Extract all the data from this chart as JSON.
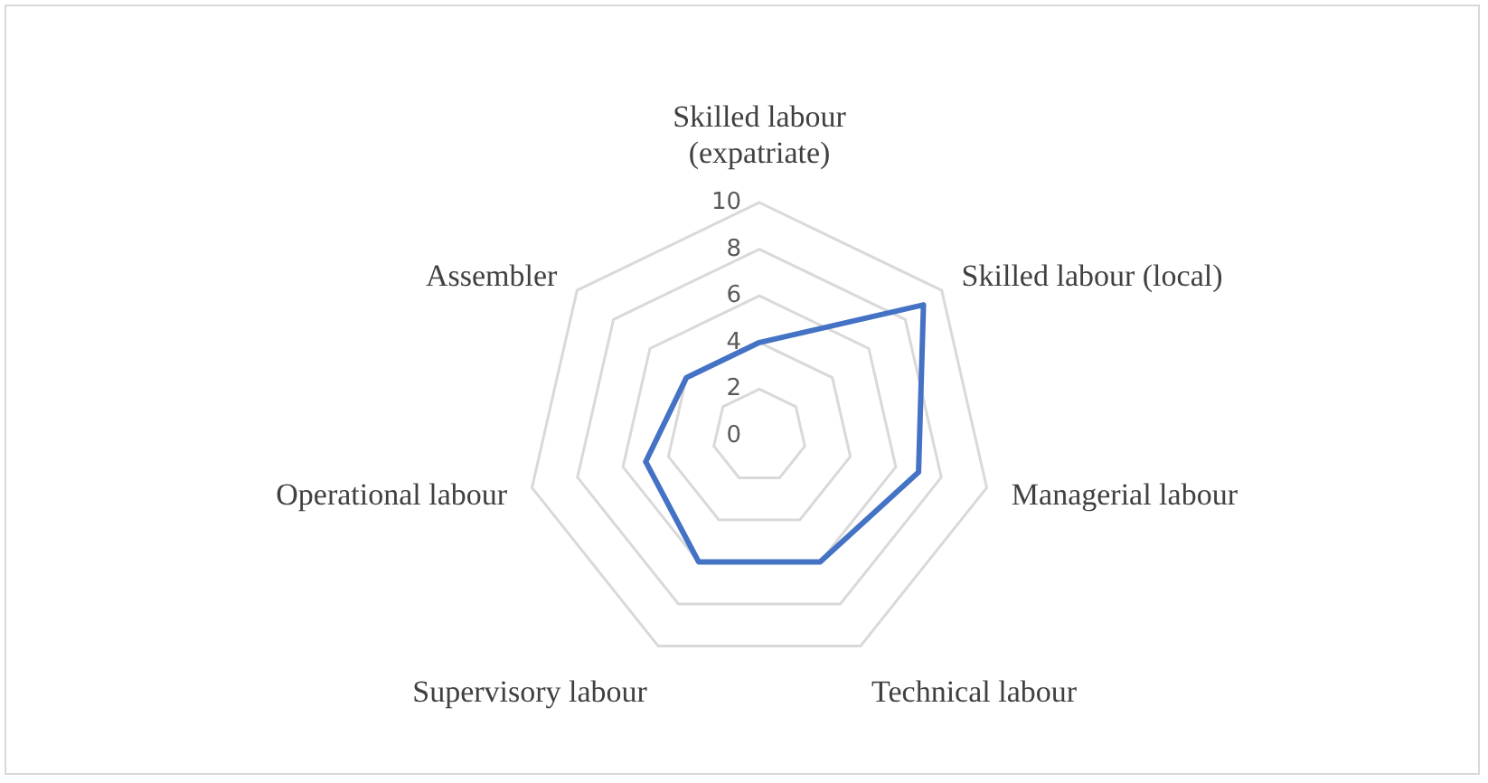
{
  "chart_data": {
    "type": "radar",
    "categories": [
      "Skilled labour (expatriate)",
      "Skilled labour (local)",
      "Managerial labour",
      "Technical labour",
      "Supervisory labour",
      "Operational labour",
      "Assembler"
    ],
    "series": [
      {
        "color": "#4472c4",
        "values": [
          4,
          9,
          7,
          6,
          6,
          5,
          4
        ]
      }
    ],
    "ylim": [
      0,
      10
    ],
    "yticks": [
      0,
      2,
      4,
      6,
      8,
      10
    ],
    "grid": true,
    "marker": "none",
    "line_style": "solid"
  }
}
